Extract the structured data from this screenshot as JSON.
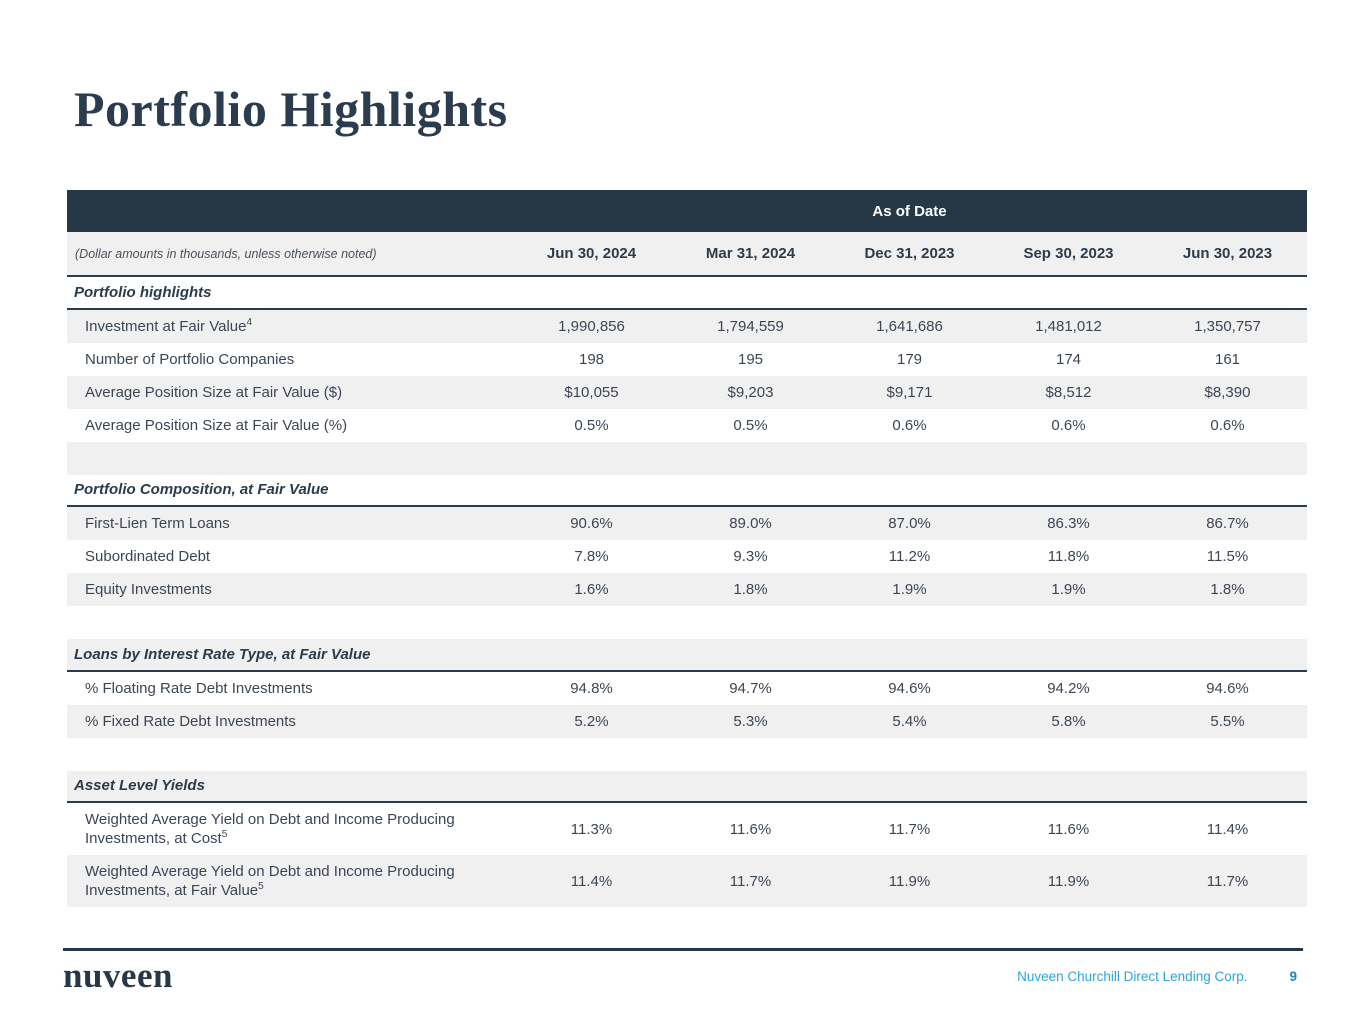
{
  "page": {
    "title": "Portfolio Highlights"
  },
  "table": {
    "banner": "As of Date",
    "note": "(Dollar amounts in thousands, unless otherwise noted)",
    "columns": [
      "Jun 30, 2024",
      "Mar 31, 2024",
      "Dec 31, 2023",
      "Sep 30, 2023",
      "Jun 30, 2023"
    ],
    "sections": [
      {
        "title": "Portfolio highlights",
        "rows": [
          {
            "label": "Investment at Fair Value",
            "sup": "4",
            "values": [
              "1,990,856",
              "1,794,559",
              "1,641,686",
              "1,481,012",
              "1,350,757"
            ]
          },
          {
            "label": "Number of Portfolio Companies",
            "values": [
              "198",
              "195",
              "179",
              "174",
              "161"
            ]
          },
          {
            "label": "Average Position Size at Fair Value ($)",
            "values": [
              "$10,055",
              "$9,203",
              "$9,171",
              "$8,512",
              "$8,390"
            ]
          },
          {
            "label": "Average Position Size at Fair Value (%)",
            "values": [
              "0.5%",
              "0.5%",
              "0.6%",
              "0.6%",
              "0.6%"
            ]
          }
        ]
      },
      {
        "title": "Portfolio Composition, at Fair Value",
        "rows": [
          {
            "label": "First-Lien Term Loans",
            "values": [
              "90.6%",
              "89.0%",
              "87.0%",
              "86.3%",
              "86.7%"
            ]
          },
          {
            "label": "Subordinated Debt",
            "values": [
              "7.8%",
              "9.3%",
              "11.2%",
              "11.8%",
              "11.5%"
            ]
          },
          {
            "label": "Equity Investments",
            "values": [
              "1.6%",
              "1.8%",
              "1.9%",
              "1.9%",
              "1.8%"
            ]
          }
        ]
      },
      {
        "title": "Loans by Interest Rate Type, at Fair Value",
        "rows": [
          {
            "label": "% Floating Rate Debt Investments",
            "values": [
              "94.8%",
              "94.7%",
              "94.6%",
              "94.2%",
              "94.6%"
            ]
          },
          {
            "label": "% Fixed Rate Debt Investments",
            "values": [
              "5.2%",
              "5.3%",
              "5.4%",
              "5.8%",
              "5.5%"
            ]
          }
        ]
      },
      {
        "title": "Asset Level Yields",
        "rows": [
          {
            "label": "Weighted Average Yield on Debt and Income Producing Investments, at Cost",
            "sup": "5",
            "values": [
              "11.3%",
              "11.6%",
              "11.7%",
              "11.6%",
              "11.4%"
            ]
          },
          {
            "label": "Weighted Average Yield on Debt and Income Producing Investments, at Fair Value",
            "sup": "5",
            "values": [
              "11.4%",
              "11.7%",
              "11.9%",
              "11.9%",
              "11.7%"
            ]
          }
        ]
      }
    ]
  },
  "footer": {
    "logo": "nuveen",
    "company": "Nuveen Churchill Direct Lending Corp.",
    "page_number": "9"
  },
  "colors": {
    "navy_band": "#263845",
    "stripe_gray": "#f0f0f1",
    "accent_blue": "#2ba5da",
    "page_number_blue": "#1e87b8",
    "title_navy": "#2c3c4f"
  }
}
